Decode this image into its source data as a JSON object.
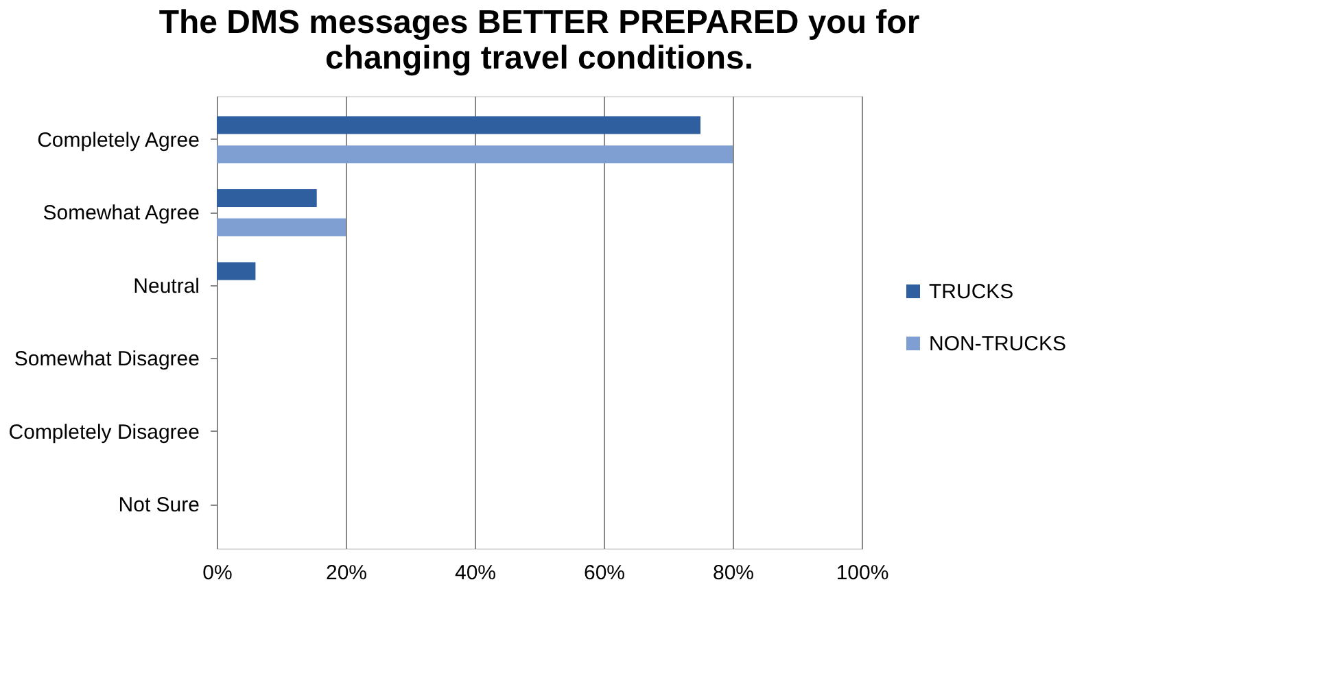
{
  "chart_data": {
    "type": "bar",
    "orientation": "horizontal",
    "title": "The DMS messages BETTER PREPARED you for changing travel conditions.",
    "categories": [
      "Completely Agree",
      "Somewhat Agree",
      "Neutral",
      "Somewhat Disagree",
      "Completely Disagree",
      "Not Sure"
    ],
    "series": [
      {
        "name": "TRUCKS",
        "color": "#2f5f9f",
        "values": [
          75,
          15.5,
          6,
          0,
          0,
          0
        ]
      },
      {
        "name": "NON-TRUCKS",
        "color": "#7f9fd2",
        "values": [
          80,
          20,
          0,
          0,
          0,
          0
        ]
      }
    ],
    "xlim": [
      0,
      100
    ],
    "xticks": [
      {
        "value": 0,
        "label": "0%"
      },
      {
        "value": 20,
        "label": "20%"
      },
      {
        "value": 40,
        "label": "40%"
      },
      {
        "value": 60,
        "label": "60%"
      },
      {
        "value": 80,
        "label": "80%"
      },
      {
        "value": 100,
        "label": "100%"
      }
    ],
    "grid": "x",
    "legend": "right"
  }
}
